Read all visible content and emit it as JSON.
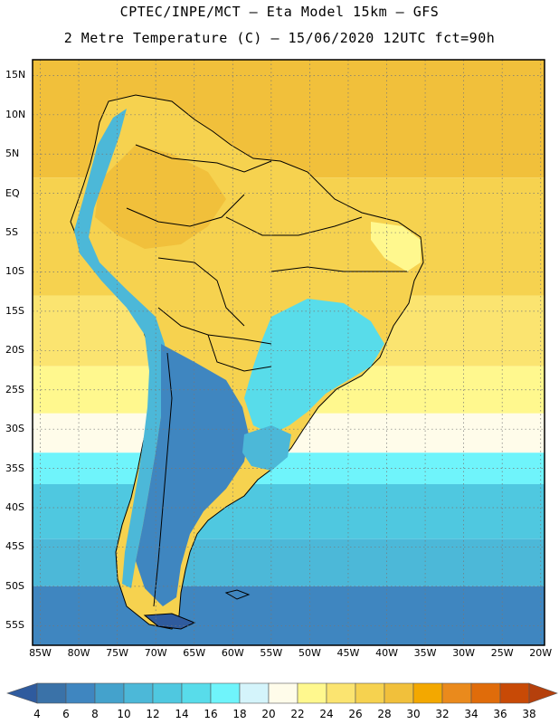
{
  "header": {
    "line1": "CPTEC/INPE/MCT –  Eta Model 15km – GFS",
    "line2": "2 Metre Temperature (C) – 15/06/2020 12UTC fct=90h"
  },
  "map": {
    "lat_labels": [
      "15N",
      "10N",
      "5N",
      "EQ",
      "5S",
      "10S",
      "15S",
      "20S",
      "25S",
      "30S",
      "35S",
      "40S",
      "45S",
      "50S",
      "55S"
    ],
    "lon_labels": [
      "85W",
      "80W",
      "75W",
      "70W",
      "65W",
      "60W",
      "55W",
      "50W",
      "45W",
      "40W",
      "35W",
      "30W",
      "25W",
      "20W"
    ],
    "ocean_bands": [
      {
        "lat_north": 17,
        "lat_south": 2,
        "temp_c": 28
      },
      {
        "lat_north": 2,
        "lat_south": -13,
        "temp_c": 26
      },
      {
        "lat_north": -13,
        "lat_south": -22,
        "temp_c": 24
      },
      {
        "lat_north": -22,
        "lat_south": -28,
        "temp_c": 22
      },
      {
        "lat_north": -28,
        "lat_south": -33,
        "temp_c": 20
      },
      {
        "lat_north": -33,
        "lat_south": -37,
        "temp_c": 16
      },
      {
        "lat_north": -37,
        "lat_south": -44,
        "temp_c": 12
      },
      {
        "lat_north": -44,
        "lat_south": -50,
        "temp_c": 10
      },
      {
        "lat_north": -50,
        "lat_south": -57.5,
        "temp_c": 6
      }
    ]
  },
  "colorbar": {
    "labels": [
      "4",
      "6",
      "8",
      "10",
      "12",
      "14",
      "16",
      "18",
      "20",
      "22",
      "24",
      "26",
      "28",
      "30",
      "32",
      "34",
      "36",
      "38"
    ],
    "colors": [
      "#3a72a8",
      "#3f86c0",
      "#44a2cc",
      "#4cb8d8",
      "#4fc8e0",
      "#58dcea",
      "#6ff4fb",
      "#d4f4fb",
      "#fffcea",
      "#fff88e",
      "#fbe470",
      "#f6d24f",
      "#f1c03b",
      "#f3a800",
      "#ea8a1c",
      "#e06c0a",
      "#c84a06"
    ],
    "low_color": "#2f5b9e",
    "high_color": "#b5400c"
  }
}
